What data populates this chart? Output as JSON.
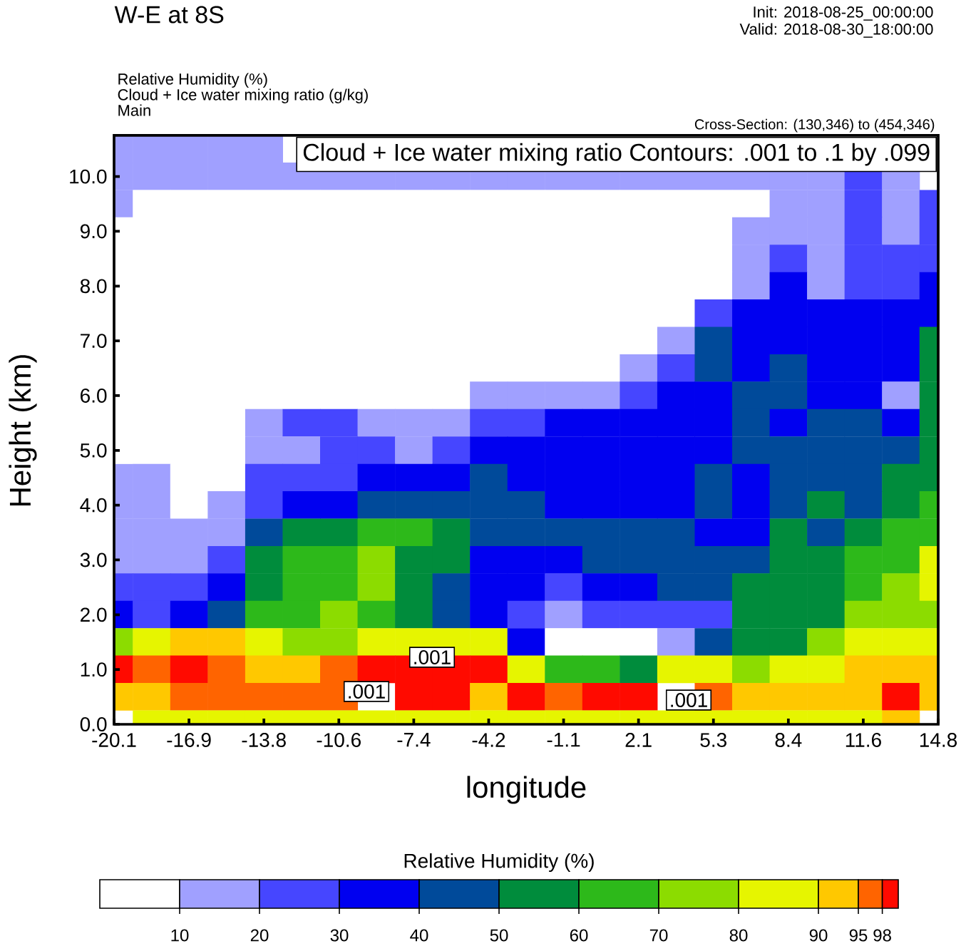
{
  "chart_data": {
    "type": "heatmap",
    "title": "W-E at 8S",
    "xlabel": "longitude",
    "ylabel": "Height (km)",
    "clabel": "Relative Humidity (%)",
    "annotations": [
      "Init: 2018-08-25_00:00:00",
      "Valid: 2018-08-30_18:00:00",
      "Relative Humidity (%)",
      "Cloud + Ice water mixing ratio (g/kg)",
      "Main",
      "Cross-Section: (130,346) to (454,346)",
      "Cloud + Ice water mixing ratio Contours: .001 to .1 by .099",
      ".001",
      ".001",
      ".001"
    ],
    "categories": [
      "-20.1",
      null,
      "-16.9",
      null,
      "-13.8",
      null,
      "-10.6",
      null,
      "-7.4",
      null,
      "-4.2",
      null,
      "-1.1",
      null,
      "2.1",
      null,
      "5.3",
      null,
      "8.4",
      null,
      "11.6",
      null,
      "14.8"
    ],
    "y_categories": [
      null,
      "10.0",
      null,
      "9.0",
      null,
      "8.0",
      null,
      "7.0",
      null,
      "6.0",
      null,
      "5.0",
      null,
      "4.0",
      null,
      "3.0",
      null,
      "2.0",
      null,
      "1.0",
      null,
      "0.0"
    ],
    "cells": [
      [
        15,
        15,
        15,
        15,
        15,
        null,
        null,
        null,
        null,
        null,
        null,
        null,
        null,
        null,
        null,
        null,
        null,
        null,
        null,
        null,
        null,
        null,
        null
      ],
      [
        15,
        15,
        15,
        15,
        15,
        15,
        15,
        15,
        15,
        15,
        15,
        15,
        15,
        15,
        15,
        15,
        15,
        15,
        15,
        15,
        25,
        15,
        null
      ],
      [
        15,
        5,
        5,
        5,
        5,
        5,
        5,
        5,
        5,
        5,
        5,
        5,
        5,
        5,
        5,
        5,
        5,
        5,
        15,
        15,
        25,
        15,
        25
      ],
      [
        5,
        5,
        5,
        5,
        5,
        5,
        5,
        5,
        5,
        5,
        5,
        5,
        5,
        5,
        5,
        5,
        5,
        15,
        15,
        15,
        25,
        15,
        25
      ],
      [
        5,
        5,
        5,
        5,
        5,
        5,
        5,
        5,
        5,
        5,
        5,
        5,
        5,
        5,
        5,
        5,
        5,
        15,
        25,
        15,
        25,
        25,
        25
      ],
      [
        5,
        5,
        5,
        5,
        5,
        5,
        5,
        5,
        5,
        5,
        5,
        5,
        5,
        5,
        5,
        5,
        5,
        15,
        35,
        15,
        25,
        25,
        35
      ],
      [
        5,
        5,
        5,
        5,
        5,
        5,
        5,
        5,
        5,
        5,
        5,
        5,
        5,
        5,
        5,
        5,
        25,
        35,
        35,
        35,
        35,
        35,
        35
      ],
      [
        5,
        5,
        5,
        5,
        5,
        5,
        5,
        5,
        5,
        5,
        5,
        5,
        5,
        5,
        5,
        15,
        45,
        35,
        35,
        35,
        35,
        35,
        55
      ],
      [
        5,
        5,
        5,
        5,
        5,
        5,
        5,
        5,
        5,
        5,
        5,
        5,
        5,
        5,
        15,
        25,
        45,
        35,
        45,
        35,
        35,
        35,
        55
      ],
      [
        5,
        5,
        5,
        5,
        5,
        5,
        5,
        5,
        5,
        5,
        15,
        15,
        15,
        15,
        25,
        35,
        35,
        45,
        45,
        35,
        35,
        15,
        55
      ],
      [
        5,
        5,
        5,
        5,
        15,
        25,
        25,
        15,
        15,
        15,
        25,
        25,
        35,
        35,
        35,
        35,
        35,
        45,
        35,
        45,
        45,
        35,
        55
      ],
      [
        5,
        5,
        5,
        5,
        15,
        15,
        25,
        25,
        15,
        25,
        35,
        35,
        35,
        35,
        35,
        35,
        35,
        45,
        45,
        45,
        45,
        45,
        55
      ],
      [
        15,
        15,
        5,
        5,
        25,
        25,
        25,
        35,
        35,
        35,
        45,
        35,
        35,
        35,
        35,
        35,
        45,
        35,
        45,
        45,
        45,
        55,
        55
      ],
      [
        15,
        15,
        5,
        15,
        25,
        35,
        35,
        45,
        45,
        45,
        45,
        45,
        35,
        35,
        35,
        35,
        45,
        35,
        45,
        55,
        45,
        55,
        65
      ],
      [
        15,
        15,
        15,
        15,
        45,
        55,
        55,
        65,
        65,
        55,
        45,
        45,
        45,
        45,
        45,
        45,
        35,
        35,
        55,
        45,
        55,
        65,
        65
      ],
      [
        15,
        15,
        15,
        25,
        55,
        65,
        65,
        75,
        55,
        55,
        35,
        35,
        35,
        45,
        45,
        45,
        45,
        45,
        55,
        55,
        65,
        65,
        85
      ],
      [
        25,
        25,
        25,
        35,
        55,
        65,
        65,
        75,
        55,
        45,
        35,
        35,
        25,
        35,
        35,
        45,
        45,
        55,
        55,
        55,
        65,
        75,
        85
      ],
      [
        35,
        25,
        35,
        45,
        65,
        65,
        75,
        65,
        55,
        45,
        35,
        25,
        15,
        25,
        25,
        25,
        25,
        55,
        55,
        55,
        75,
        75,
        75
      ],
      [
        75,
        85,
        92,
        92,
        85,
        75,
        75,
        85,
        85,
        85,
        85,
        35,
        5,
        5,
        5,
        15,
        45,
        55,
        55,
        75,
        85,
        85,
        85
      ],
      [
        99,
        96,
        99,
        96,
        92,
        92,
        96,
        99,
        99,
        99,
        99,
        85,
        65,
        65,
        55,
        85,
        85,
        75,
        85,
        85,
        92,
        92,
        92
      ],
      [
        92,
        92,
        96,
        96,
        96,
        96,
        96,
        null,
        99,
        99,
        92,
        99,
        96,
        99,
        99,
        null,
        96,
        92,
        92,
        92,
        92,
        99,
        92
      ],
      [
        null,
        85,
        85,
        85,
        85,
        85,
        85,
        85,
        85,
        85,
        85,
        85,
        85,
        85,
        85,
        85,
        85,
        85,
        85,
        85,
        85,
        92,
        null
      ]
    ],
    "clim": [
      0,
      100
    ],
    "cticks": [
      10,
      20,
      30,
      40,
      50,
      60,
      70,
      80,
      90,
      95,
      98
    ],
    "colors": [
      "#ffffff",
      "#a0a0ff",
      "#4646ff",
      "#0000f0",
      "#004a9a",
      "#008c3c",
      "#2db91a",
      "#8cdc00",
      "#e6f500",
      "#ffc800",
      "#ff6400",
      "#ff0a00"
    ]
  }
}
